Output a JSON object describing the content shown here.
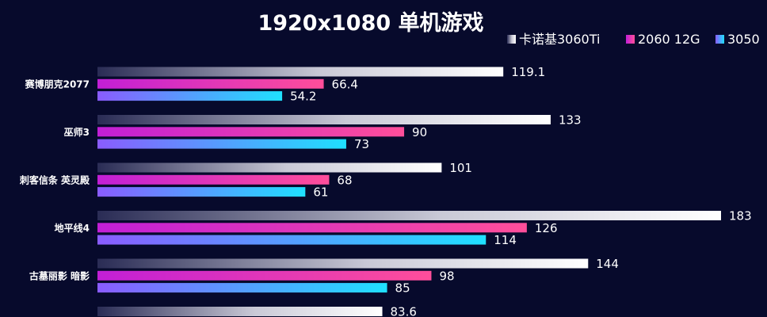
{
  "chart_data": {
    "type": "bar",
    "orientation": "horizontal",
    "title": "1920x1080  单机游戏",
    "categories": [
      "赛博朋克2077",
      "巫师3",
      "刺客信条  英灵殿",
      "地平线4",
      "古墓丽影  暗影",
      ""
    ],
    "series": [
      {
        "name": "卡诺基3060Ti",
        "values": [
          119.1,
          133,
          101,
          183,
          144,
          83.6
        ]
      },
      {
        "name": "2060 12G",
        "values": [
          66.4,
          90,
          68,
          126,
          98,
          null
        ]
      },
      {
        "name": "3050",
        "values": [
          54.2,
          73,
          61,
          114,
          85,
          null
        ]
      }
    ],
    "value_labels": [
      [
        "119.1",
        "133",
        "101",
        "183",
        "144",
        "83.6"
      ],
      [
        "66.4",
        "90",
        "68",
        "126",
        "98",
        ""
      ],
      [
        "54.2",
        "73",
        "61",
        "114",
        "85",
        ""
      ]
    ],
    "xlim": [
      0,
      183
    ],
    "grid": false,
    "legend_position": "top-right",
    "colors": {
      "background": "#070a2c",
      "series_start": [
        "#2a2c55",
        "#c21fd6",
        "#8a5cff"
      ],
      "series_end": [
        "#ffffff",
        "#ff4e9a",
        "#1fe0ff"
      ]
    }
  }
}
